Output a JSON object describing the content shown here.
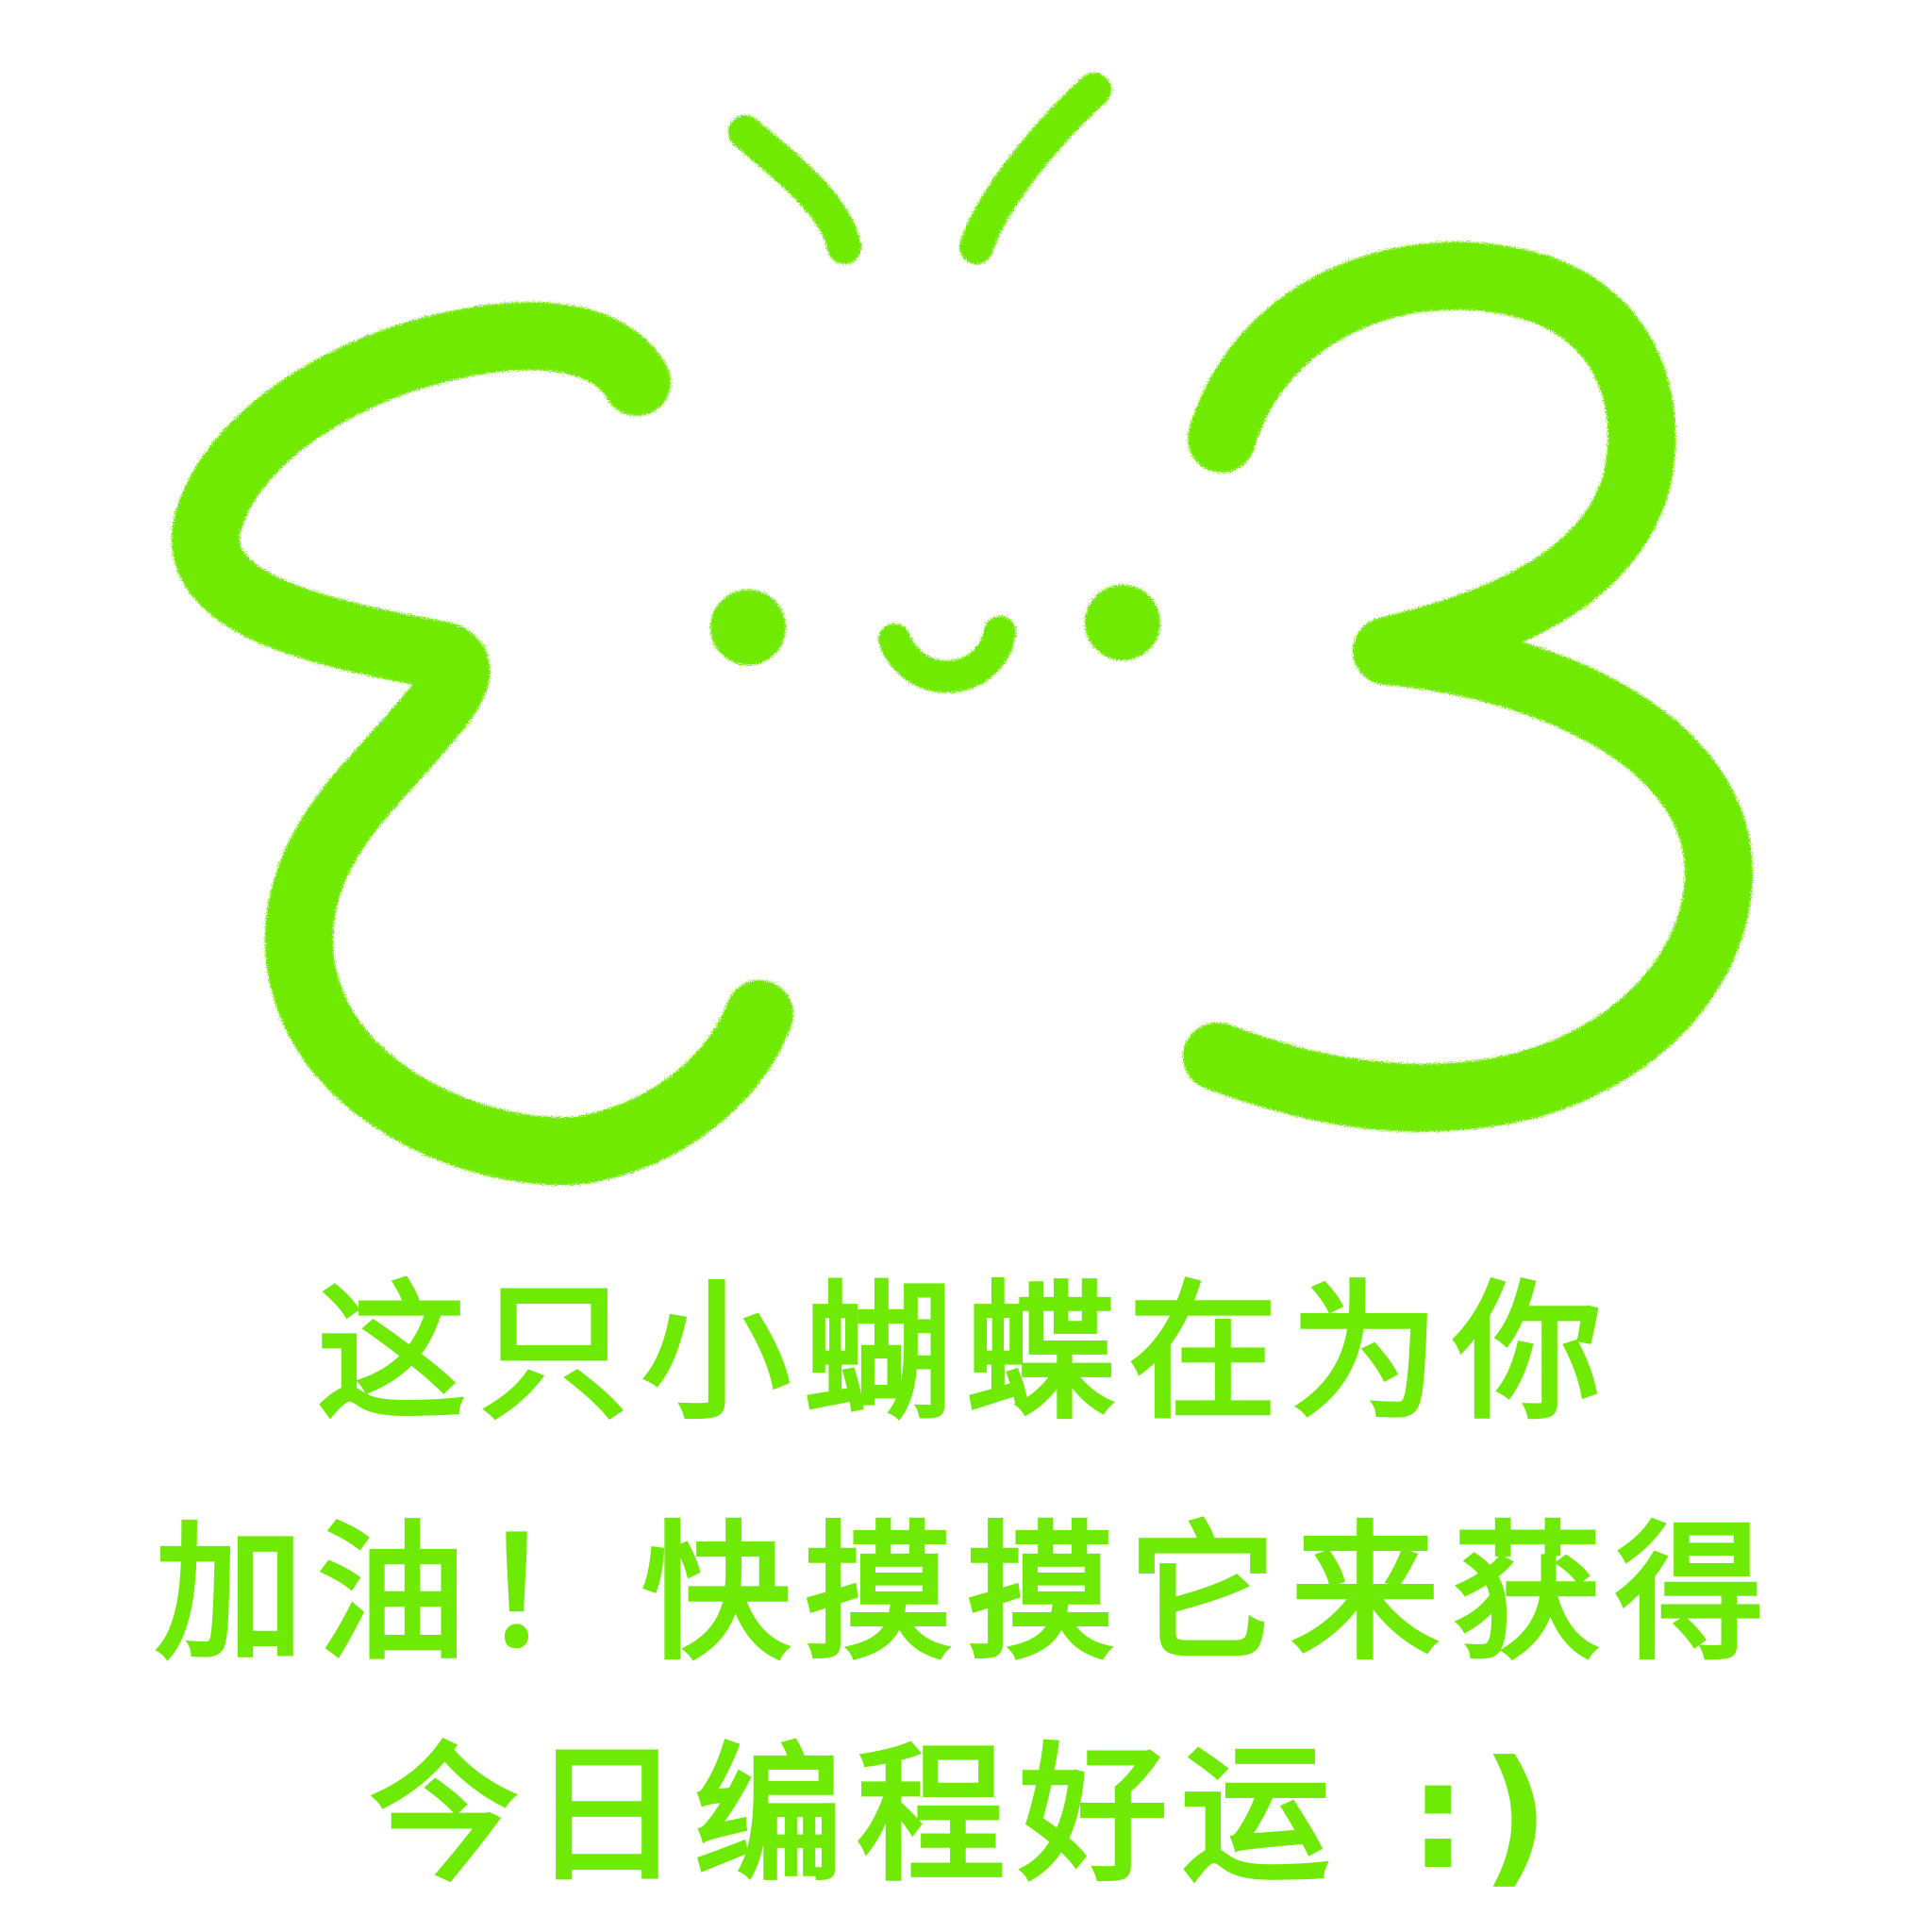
{
  "colors": {
    "ink": "#6FEA05",
    "background": "#FFFFFF"
  },
  "drawing": {
    "subject": "butterfly-doodle",
    "face": "smiling"
  },
  "message": {
    "line1": "这只小蝴蝶在为你",
    "line2": "加油！快摸摸它来获得",
    "line3": "今日编程好运 :)"
  }
}
